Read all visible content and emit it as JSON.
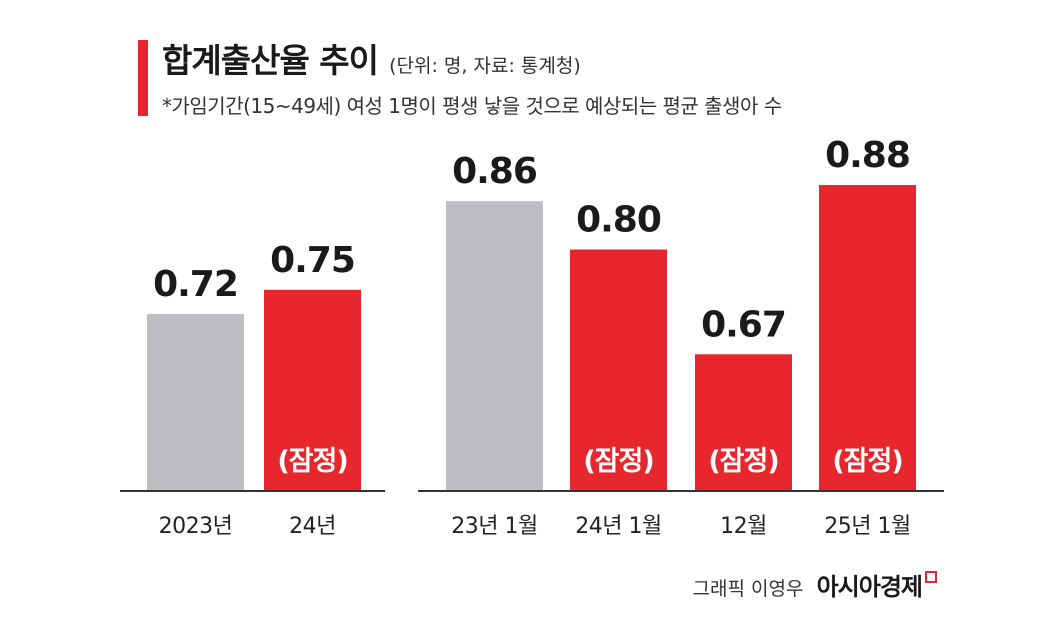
{
  "title": "합계출산율 추이",
  "unit_note": "(단위: 명, 자료: 통계청)",
  "subtitle": "*가임기간(15~49세) 여성 1명이 평생 낳을 것으로 예상되는 평균 출생아 수",
  "credit": {
    "author": "그래픽 이영우",
    "brand": "아시아경제"
  },
  "colors": {
    "provisional": "#e8262d",
    "final": "#bcbec1",
    "axis": "#333333",
    "accent": "#e8262d"
  },
  "chart_data": [
    {
      "type": "bar",
      "categories": [
        "2023년",
        "24년"
      ],
      "values": [
        0.72,
        0.75
      ],
      "value_labels": [
        "0.72",
        "0.75"
      ],
      "inner_labels": [
        "",
        "(잠정)"
      ],
      "bar_colors": [
        "#bcbec1",
        "#e8262d"
      ]
    },
    {
      "type": "bar",
      "categories": [
        "23년 1월",
        "24년 1월",
        "12월",
        "25년 1월"
      ],
      "values": [
        0.86,
        0.8,
        0.67,
        0.88
      ],
      "value_labels": [
        "0.86",
        "0.80",
        "0.67",
        "0.88"
      ],
      "inner_labels": [
        "",
        "(잠정)",
        "(잠정)",
        "(잠정)"
      ],
      "bar_colors": [
        "#bcbec1",
        "#e8262d",
        "#e8262d",
        "#e8262d"
      ]
    }
  ]
}
